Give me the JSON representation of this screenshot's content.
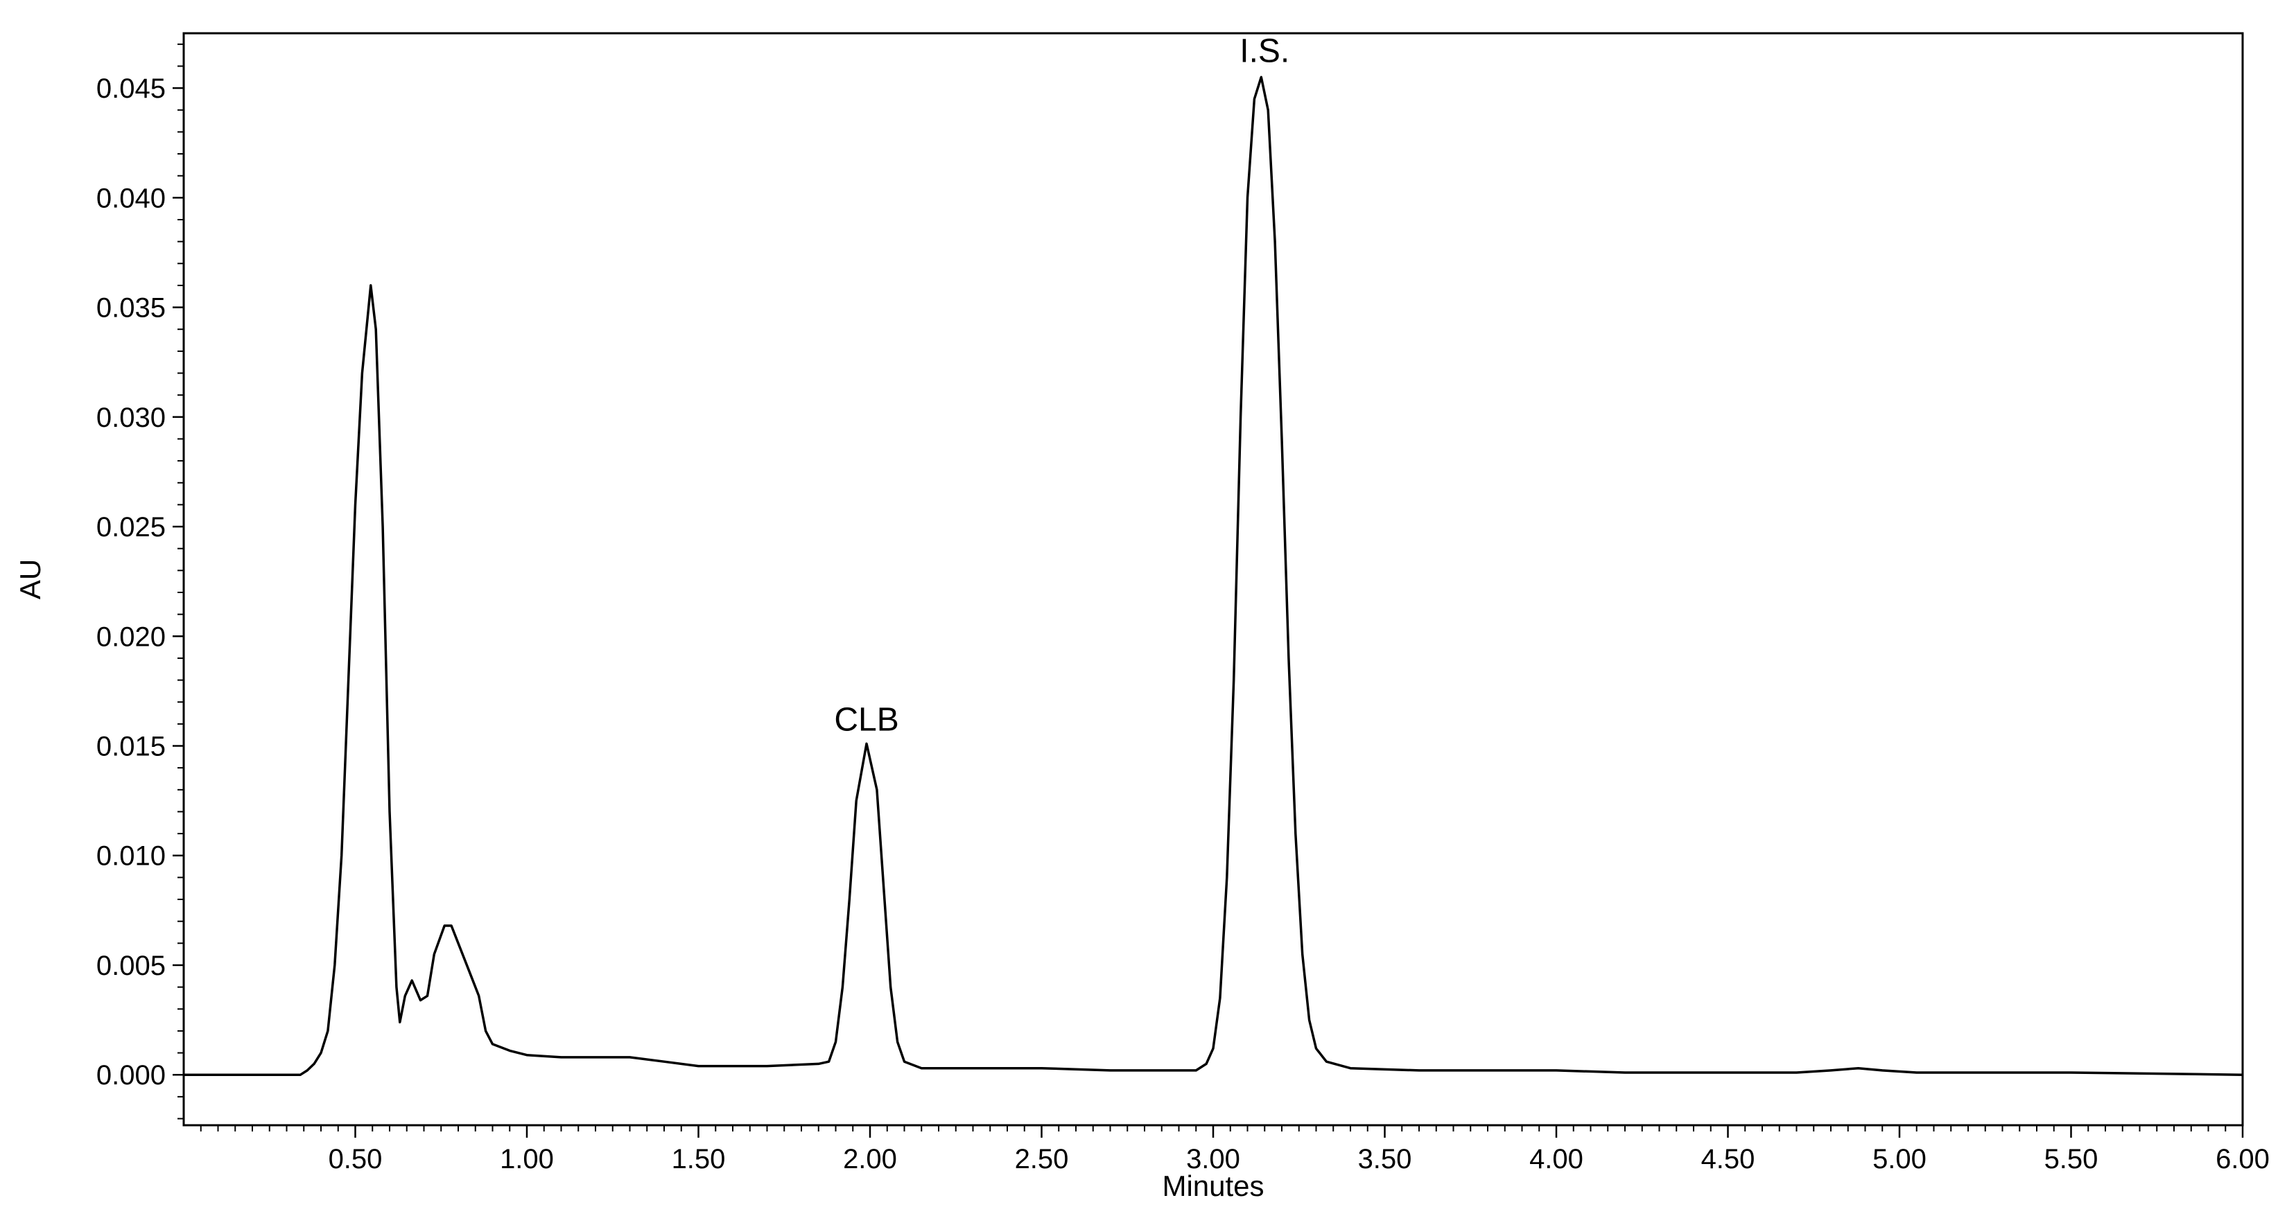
{
  "chart_data": {
    "type": "line",
    "xlabel": "Minutes",
    "ylabel": "AU",
    "xlim": [
      0.0,
      6.0
    ],
    "ylim": [
      -0.0023,
      0.0475
    ],
    "x_ticks": [
      "0.50",
      "1.00",
      "1.50",
      "2.00",
      "2.50",
      "3.00",
      "3.50",
      "4.00",
      "4.50",
      "5.00",
      "5.50",
      "6.00"
    ],
    "y_ticks": [
      "0.000",
      "0.005",
      "0.010",
      "0.015",
      "0.020",
      "0.025",
      "0.030",
      "0.035",
      "0.040",
      "0.045"
    ],
    "grid": false,
    "annotations": [
      {
        "text": "CLB",
        "x": 1.99,
        "y": 0.015
      },
      {
        "text": "I.S.",
        "x": 3.15,
        "y": 0.0455
      }
    ],
    "series": [
      {
        "color": "#000000",
        "points": [
          [
            0.0,
            0.0
          ],
          [
            0.34,
            0.0
          ],
          [
            0.36,
            0.0002
          ],
          [
            0.38,
            0.0005
          ],
          [
            0.4,
            0.001
          ],
          [
            0.42,
            0.002
          ],
          [
            0.44,
            0.005
          ],
          [
            0.46,
            0.01
          ],
          [
            0.48,
            0.018
          ],
          [
            0.5,
            0.026
          ],
          [
            0.52,
            0.032
          ],
          [
            0.545,
            0.036
          ],
          [
            0.56,
            0.034
          ],
          [
            0.58,
            0.025
          ],
          [
            0.6,
            0.012
          ],
          [
            0.62,
            0.004
          ],
          [
            0.63,
            0.0024
          ],
          [
            0.645,
            0.0036
          ],
          [
            0.665,
            0.0043
          ],
          [
            0.69,
            0.0034
          ],
          [
            0.71,
            0.0036
          ],
          [
            0.73,
            0.0055
          ],
          [
            0.76,
            0.0068
          ],
          [
            0.78,
            0.0068
          ],
          [
            0.8,
            0.006
          ],
          [
            0.83,
            0.0048
          ],
          [
            0.86,
            0.0036
          ],
          [
            0.88,
            0.002
          ],
          [
            0.9,
            0.0014
          ],
          [
            0.95,
            0.0011
          ],
          [
            1.0,
            0.0009
          ],
          [
            1.1,
            0.0008
          ],
          [
            1.2,
            0.0008
          ],
          [
            1.3,
            0.0008
          ],
          [
            1.4,
            0.0006
          ],
          [
            1.5,
            0.0004
          ],
          [
            1.7,
            0.0004
          ],
          [
            1.85,
            0.0005
          ],
          [
            1.88,
            0.0006
          ],
          [
            1.9,
            0.0015
          ],
          [
            1.92,
            0.004
          ],
          [
            1.94,
            0.008
          ],
          [
            1.96,
            0.0125
          ],
          [
            1.99,
            0.0151
          ],
          [
            2.02,
            0.013
          ],
          [
            2.04,
            0.0085
          ],
          [
            2.06,
            0.004
          ],
          [
            2.08,
            0.0015
          ],
          [
            2.1,
            0.0006
          ],
          [
            2.15,
            0.0003
          ],
          [
            2.3,
            0.0003
          ],
          [
            2.5,
            0.0003
          ],
          [
            2.7,
            0.0002
          ],
          [
            2.95,
            0.0002
          ],
          [
            2.98,
            0.0005
          ],
          [
            3.0,
            0.0012
          ],
          [
            3.02,
            0.0035
          ],
          [
            3.04,
            0.009
          ],
          [
            3.06,
            0.018
          ],
          [
            3.08,
            0.03
          ],
          [
            3.1,
            0.04
          ],
          [
            3.12,
            0.0445
          ],
          [
            3.14,
            0.0455
          ],
          [
            3.16,
            0.044
          ],
          [
            3.18,
            0.038
          ],
          [
            3.2,
            0.029
          ],
          [
            3.22,
            0.019
          ],
          [
            3.24,
            0.011
          ],
          [
            3.26,
            0.0055
          ],
          [
            3.28,
            0.0025
          ],
          [
            3.3,
            0.0012
          ],
          [
            3.33,
            0.0006
          ],
          [
            3.4,
            0.0003
          ],
          [
            3.6,
            0.0002
          ],
          [
            4.0,
            0.0002
          ],
          [
            4.2,
            0.0001
          ],
          [
            4.7,
            0.0001
          ],
          [
            4.8,
            0.0002
          ],
          [
            4.88,
            0.0003
          ],
          [
            4.95,
            0.0002
          ],
          [
            5.05,
            0.0001
          ],
          [
            5.5,
            0.0001
          ],
          [
            6.0,
            0.0
          ]
        ]
      }
    ]
  }
}
